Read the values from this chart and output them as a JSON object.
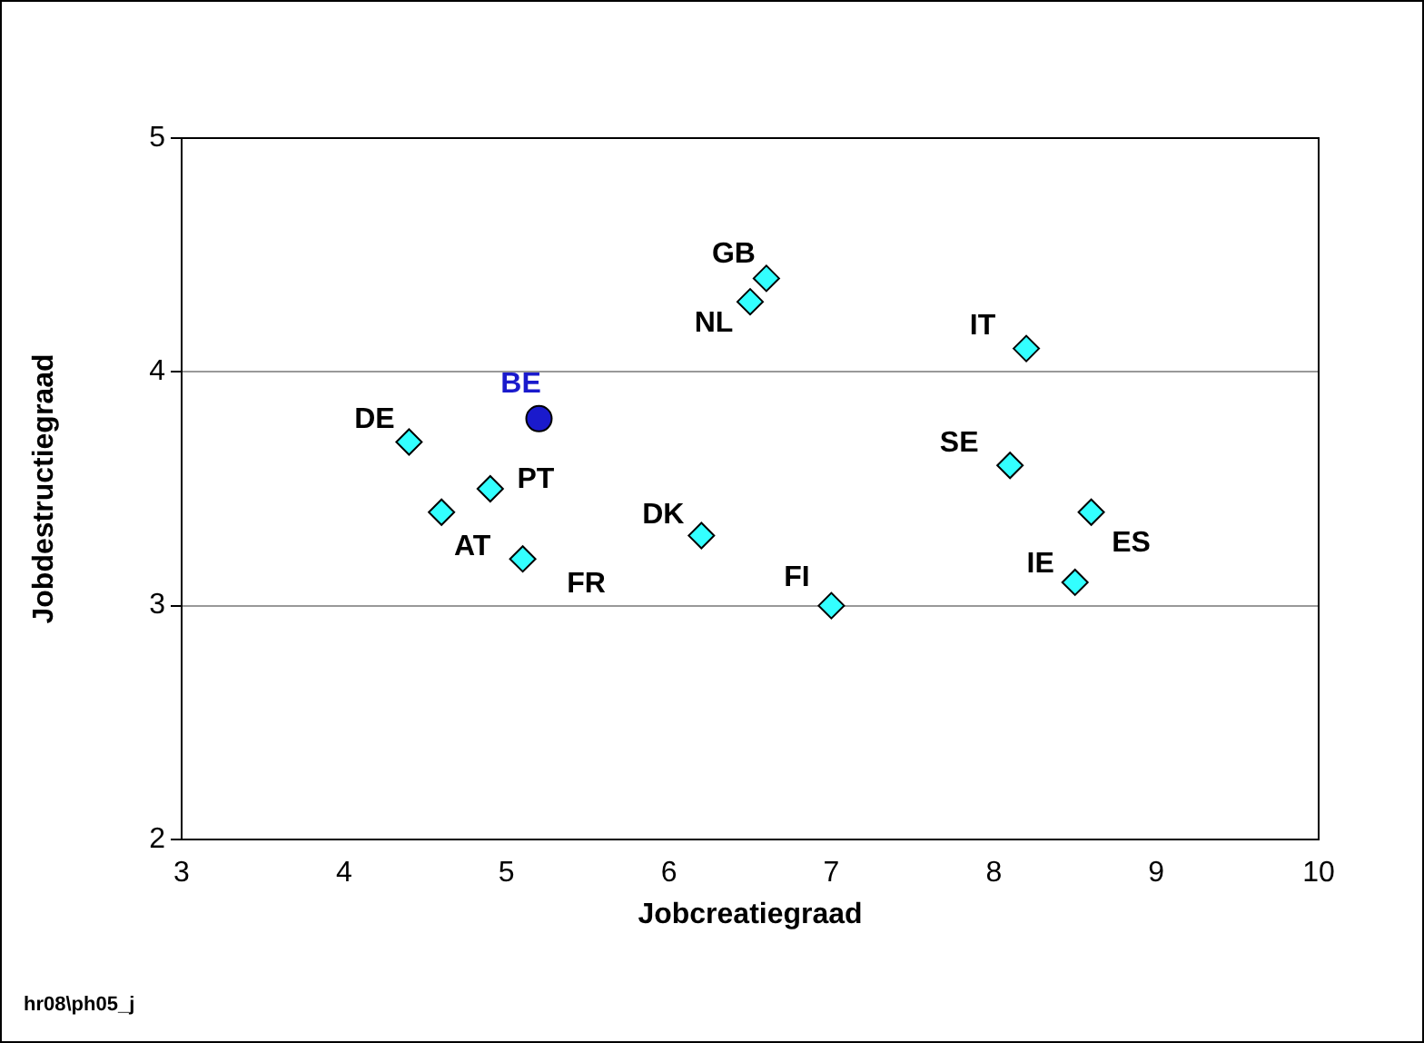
{
  "chart_data": {
    "type": "scatter",
    "xlabel": "Jobcreatiegraad",
    "ylabel": "Jobdestructiegraad",
    "xlim": [
      3,
      10
    ],
    "xticks": [
      3,
      4,
      5,
      6,
      7,
      8,
      9,
      10
    ],
    "ylim": [
      2,
      5
    ],
    "yticks": [
      2,
      3,
      4,
      5
    ],
    "grid": "y",
    "annotations": [
      "hr08\\ph05_j"
    ],
    "series": [
      {
        "name": "GB",
        "color": "#33ffff",
        "marker": "diamond",
        "x": [
          6.6
        ],
        "values": [
          4.4
        ]
      },
      {
        "name": "NL",
        "color": "#33ffff",
        "marker": "diamond",
        "x": [
          6.5
        ],
        "values": [
          4.3
        ]
      },
      {
        "name": "IT",
        "color": "#33ffff",
        "marker": "diamond",
        "x": [
          8.2
        ],
        "values": [
          4.1
        ]
      },
      {
        "name": "BE",
        "color": "#1a1acc",
        "marker": "circle",
        "x": [
          5.2
        ],
        "values": [
          3.8
        ]
      },
      {
        "name": "DE",
        "color": "#33ffff",
        "marker": "diamond",
        "x": [
          4.4
        ],
        "values": [
          3.7
        ]
      },
      {
        "name": "SE",
        "color": "#33ffff",
        "marker": "diamond",
        "x": [
          8.1
        ],
        "values": [
          3.6
        ]
      },
      {
        "name": "PT",
        "color": "#33ffff",
        "marker": "diamond",
        "x": [
          4.9
        ],
        "values": [
          3.5
        ]
      },
      {
        "name": "AT",
        "color": "#33ffff",
        "marker": "diamond",
        "x": [
          4.6
        ],
        "values": [
          3.4
        ]
      },
      {
        "name": "ES",
        "color": "#33ffff",
        "marker": "diamond",
        "x": [
          8.6
        ],
        "values": [
          3.4
        ]
      },
      {
        "name": "DK",
        "color": "#33ffff",
        "marker": "diamond",
        "x": [
          6.2
        ],
        "values": [
          3.3
        ]
      },
      {
        "name": "FR",
        "color": "#33ffff",
        "marker": "diamond",
        "x": [
          5.1
        ],
        "values": [
          3.2
        ]
      },
      {
        "name": "IE",
        "color": "#33ffff",
        "marker": "diamond",
        "x": [
          8.5
        ],
        "values": [
          3.1
        ]
      },
      {
        "name": "FI",
        "color": "#33ffff",
        "marker": "diamond",
        "x": [
          7.0
        ],
        "values": [
          3.0
        ]
      }
    ]
  }
}
